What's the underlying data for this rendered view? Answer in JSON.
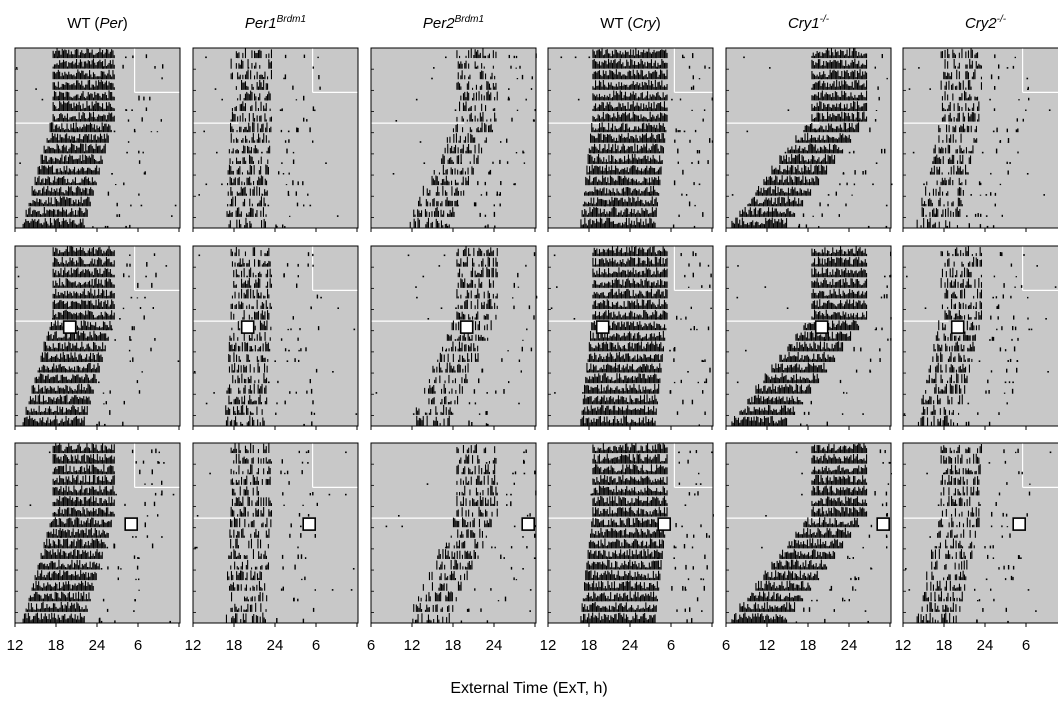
{
  "figure": {
    "x_axis_title": "External Time (ExT, h)"
  },
  "columns": [
    {
      "title_main": "WT (",
      "title_italic": "Per",
      "title_close": ")",
      "title_sup": "",
      "tick_labels": [
        "12",
        "18",
        "24",
        "6"
      ]
    },
    {
      "title_main": "",
      "title_italic": "Per1",
      "title_close": "",
      "title_sup": "Brdm1",
      "tick_labels": [
        "12",
        "18",
        "24",
        "6"
      ]
    },
    {
      "title_main": "",
      "title_italic": "Per2",
      "title_close": "",
      "title_sup": "Brdm1",
      "tick_labels": [
        "6",
        "12",
        "18",
        "24"
      ]
    },
    {
      "title_main": "WT (",
      "title_italic": "Cry",
      "title_close": ")",
      "title_sup": "",
      "tick_labels": [
        "12",
        "18",
        "24",
        "6"
      ]
    },
    {
      "title_main": "",
      "title_italic": "Cry1",
      "title_close": "",
      "title_sup": "-/-",
      "tick_labels": [
        "6",
        "12",
        "18",
        "24"
      ]
    },
    {
      "title_main": "",
      "title_italic": "Cry2",
      "title_close": "",
      "title_sup": "-/-",
      "tick_labels": [
        "12",
        "18",
        "24",
        "6"
      ]
    }
  ],
  "chart_data": {
    "type": "actogram-grid",
    "xlabel": "External Time (ExT, h)",
    "rows": 3,
    "columns": [
      "WT (Per)",
      "Per1Brdm1",
      "Per2Brdm1",
      "WT (Cry)",
      "Cry1-/-",
      "Cry2-/-"
    ],
    "x_ticks_per_column": [
      [
        "12",
        "18",
        "24",
        "6"
      ],
      [
        "12",
        "18",
        "24",
        "6"
      ],
      [
        "6",
        "12",
        "18",
        "24"
      ],
      [
        "12",
        "18",
        "24",
        "6"
      ],
      [
        "6",
        "12",
        "18",
        "24"
      ],
      [
        "12",
        "18",
        "24",
        "6"
      ]
    ],
    "light_regime_days": {
      "total": 17,
      "light_dark_days": 7
    },
    "activity_onset_ext": {
      "WT (Per)": 17.5,
      "Per1Brdm1": 17.5,
      "Per2Brdm1": 18.5,
      "WT (Cry)": 18.5,
      "Cry1-/-": 18.5,
      "Cry2-/-": 17.5
    },
    "pulse_markers": {
      "row1": "none",
      "row2": {
        "WT (Per)": 20,
        "Per1Brdm1": 20,
        "Per2Brdm1": 20,
        "WT (Cry)": 20,
        "Cry1-/-": 20,
        "Cry2-/-": 20
      },
      "row3": {
        "WT (Per)": 29,
        "Per1Brdm1": 29,
        "Per2Brdm1": 29,
        "WT (Cry)": 29,
        "Cry1-/-": 29,
        "Cry2-/-": 29
      }
    }
  }
}
